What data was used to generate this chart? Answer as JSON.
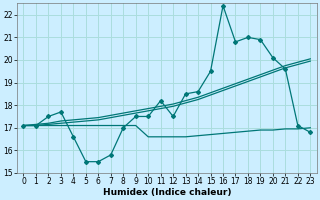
{
  "xlabel": "Humidex (Indice chaleur)",
  "bg_color": "#cceeff",
  "grid_color": "#aadddd",
  "line_color": "#007777",
  "xlim": [
    -0.5,
    23.5
  ],
  "ylim": [
    15.0,
    22.5
  ],
  "yticks": [
    15,
    16,
    17,
    18,
    19,
    20,
    21,
    22
  ],
  "x_ticks": [
    0,
    1,
    2,
    3,
    4,
    5,
    6,
    7,
    8,
    9,
    10,
    11,
    12,
    13,
    14,
    15,
    16,
    17,
    18,
    19,
    20,
    21,
    22,
    23
  ],
  "main_y": [
    17.1,
    17.1,
    17.5,
    17.7,
    16.6,
    15.5,
    15.5,
    15.8,
    17.0,
    17.5,
    17.5,
    18.2,
    17.5,
    18.5,
    18.6,
    19.5,
    22.4,
    20.8,
    21.0,
    20.9,
    20.1,
    19.6,
    17.1,
    16.8
  ],
  "line2_y": [
    17.1,
    17.15,
    17.2,
    17.3,
    17.35,
    17.4,
    17.45,
    17.55,
    17.65,
    17.75,
    17.85,
    17.95,
    18.05,
    18.2,
    18.35,
    18.55,
    18.75,
    18.95,
    19.15,
    19.35,
    19.55,
    19.75,
    19.9,
    20.05
  ],
  "line3_y": [
    17.1,
    17.1,
    17.15,
    17.2,
    17.25,
    17.3,
    17.35,
    17.45,
    17.55,
    17.65,
    17.75,
    17.85,
    17.95,
    18.1,
    18.25,
    18.45,
    18.65,
    18.85,
    19.05,
    19.25,
    19.45,
    19.65,
    19.8,
    19.95
  ],
  "line4_y": [
    17.1,
    17.1,
    17.1,
    17.1,
    17.1,
    17.1,
    17.1,
    17.1,
    17.1,
    17.1,
    16.6,
    16.6,
    16.6,
    16.6,
    16.65,
    16.7,
    16.75,
    16.8,
    16.85,
    16.9,
    16.9,
    16.95,
    16.95,
    17.0
  ],
  "tick_fontsize": 5.5,
  "xlabel_fontsize": 6.5
}
